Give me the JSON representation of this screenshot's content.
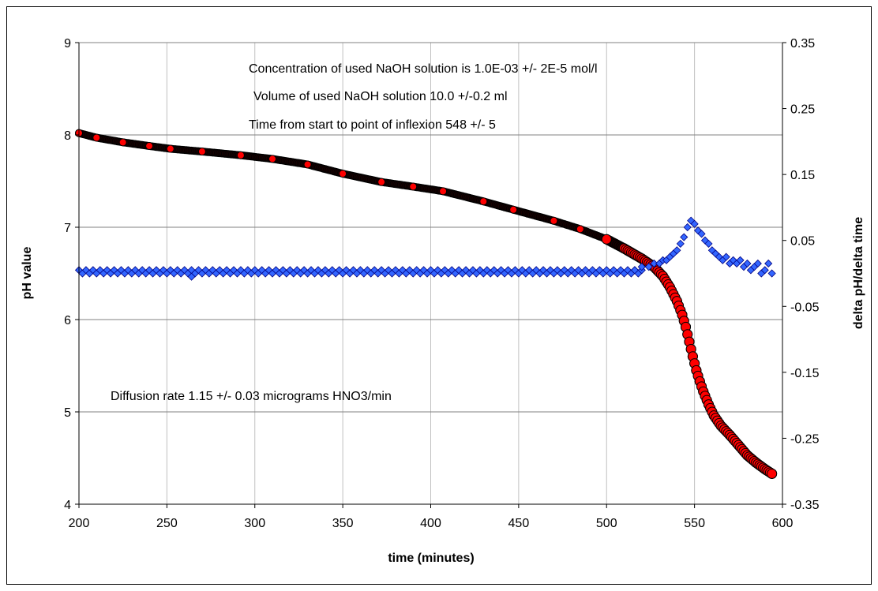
{
  "chart_data": {
    "type": "scatter",
    "xlabel": "time (minutes)",
    "ylabel": "pH value",
    "y2label": "delta pH/delta time",
    "xlim": [
      200,
      600
    ],
    "ylim": [
      4,
      9
    ],
    "y2lim": [
      -0.35,
      0.35
    ],
    "x_ticks": [
      200,
      250,
      300,
      350,
      400,
      450,
      500,
      550,
      600
    ],
    "y_ticks": [
      4,
      5,
      6,
      7,
      8,
      9
    ],
    "y2_ticks": [
      -0.35,
      -0.25,
      -0.15,
      -0.05,
      0.05,
      0.15,
      0.25,
      0.35
    ],
    "x_ticks_text": [
      "200",
      "250",
      "300",
      "350",
      "400",
      "450",
      "500",
      "550",
      "600"
    ],
    "y_ticks_text": [
      "4",
      "5",
      "6",
      "7",
      "8",
      "9"
    ],
    "y2_ticks_text": [
      "-0.35",
      "-0.25",
      "-0.15",
      "-0.05",
      "0.05",
      "0.15",
      "0.25",
      "0.35"
    ],
    "grid": "horizontal and vertical",
    "annotations": [
      "Concentration of used NaOH solution is 1.0E-03 +/- 2E-5 mol/l",
      "Volume of used NaOH solution 10.0 +/-0.2 ml",
      "Time from start to point of inflexion 548 +/- 5",
      "Diffusion rate 1.15 +/- 0.03 micrograms HNO3/min"
    ],
    "colors": {
      "ph_marker": "#ff0000",
      "ph_marker_edge": "#000000",
      "delta_marker": "#3366ff",
      "delta_marker_edge": "#000080",
      "gridline": "#808080",
      "vgridline": "#c0c0c0"
    },
    "series": [
      {
        "axis": "left",
        "marker": "circle",
        "x": [
          200,
          210,
          225,
          240,
          252,
          270,
          292,
          310,
          330,
          350,
          372,
          390,
          407,
          430,
          447,
          470,
          485,
          500,
          510,
          520,
          527,
          532,
          536,
          540,
          543,
          545,
          547,
          549,
          551,
          553,
          555,
          558,
          561,
          565,
          570,
          575,
          580,
          585,
          590,
          594
        ],
        "values": [
          8.02,
          7.97,
          7.92,
          7.88,
          7.85,
          7.82,
          7.78,
          7.74,
          7.68,
          7.58,
          7.49,
          7.44,
          7.39,
          7.28,
          7.19,
          7.07,
          6.98,
          6.87,
          6.77,
          6.66,
          6.57,
          6.47,
          6.35,
          6.2,
          6.05,
          5.92,
          5.76,
          5.6,
          5.45,
          5.33,
          5.22,
          5.08,
          4.96,
          4.85,
          4.75,
          4.64,
          4.53,
          4.45,
          4.38,
          4.33
        ]
      },
      {
        "axis": "right",
        "marker": "diamond",
        "baseline_x": [
          200,
          520
        ],
        "baseline_values": [
          0.0,
          0.005
        ],
        "x": [
          264,
          516,
          520,
          524,
          527,
          530,
          532,
          534,
          536,
          538,
          540,
          542,
          544,
          546,
          548,
          550,
          552,
          554,
          556,
          558,
          560,
          562,
          564,
          566,
          568,
          570,
          572,
          574,
          576,
          578,
          580,
          582,
          584,
          586,
          588,
          590,
          592,
          594
        ],
        "values": [
          -0.005,
          0.005,
          0.01,
          0.01,
          0.015,
          0.015,
          0.02,
          0.02,
          0.025,
          0.03,
          0.035,
          0.045,
          0.055,
          0.07,
          0.08,
          0.075,
          0.065,
          0.06,
          0.05,
          0.045,
          0.035,
          0.03,
          0.025,
          0.02,
          0.025,
          0.015,
          0.02,
          0.015,
          0.02,
          0.01,
          0.015,
          0.005,
          0.01,
          0.015,
          0.0,
          0.005,
          0.015,
          0.0
        ]
      }
    ]
  }
}
